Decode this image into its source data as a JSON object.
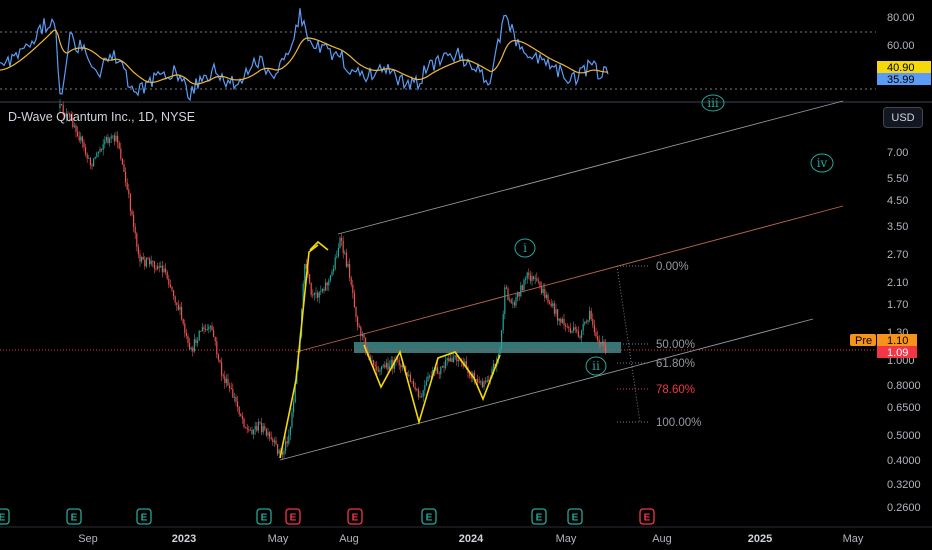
{
  "chart_data": [
    {
      "type": "line",
      "panel": "oscillator",
      "ticks": [
        "80.00",
        "60.00"
      ],
      "current_labels": [
        {
          "value": "40.90",
          "color": "#f5d90a",
          "text_color": "#000000"
        },
        {
          "value": "35.99",
          "color": "#5b9cf6",
          "text_color": "#000000"
        }
      ],
      "series": [
        {
          "color": "#5b9cf6"
        },
        {
          "color": "#f0b73a"
        }
      ]
    },
    {
      "type": "candlestick",
      "panel": "price",
      "title": "D-Wave Quantum Inc., 1D, NYSE",
      "currency": "USD",
      "scale": "log",
      "y_ticks": [
        "7.00",
        "5.50",
        "4.50",
        "3.50",
        "2.70",
        "2.10",
        "1.70",
        "1.30",
        "1.000",
        "0.8000",
        "0.6500",
        "0.5000",
        "0.4000",
        "0.3200",
        "0.2600"
      ],
      "x_ticks": [
        "Sep",
        "2023",
        "May",
        "Aug",
        "2024",
        "May",
        "Aug",
        "2025",
        "May"
      ],
      "x_ticks_bold": [
        "2023",
        "2024",
        "2025"
      ],
      "price_labels": [
        {
          "tag": "Pre",
          "value": "1.10",
          "color": "#f7931a"
        },
        {
          "value": "1.09",
          "color": "#f23645"
        }
      ],
      "fib_levels": [
        {
          "label": "0.00%",
          "color": "#787b86"
        },
        {
          "label": "50.00%",
          "color": "#787b86"
        },
        {
          "label": "61.80%",
          "color": "#787b86"
        },
        {
          "label": "78.60%",
          "color": "#f23645"
        },
        {
          "label": "100.00%",
          "color": "#787b86"
        }
      ],
      "wave_labels": [
        "iii",
        "iv",
        "i",
        "ii"
      ],
      "events": [
        "E",
        "E",
        "E",
        "E",
        "E",
        "E",
        "E",
        "E",
        "E",
        "E"
      ],
      "colors": {
        "up": "#26a69a",
        "down": "#ef5350",
        "zone": "#3d8a8a",
        "pattern": "#f5d90a",
        "price_line": "#f23645"
      }
    }
  ]
}
